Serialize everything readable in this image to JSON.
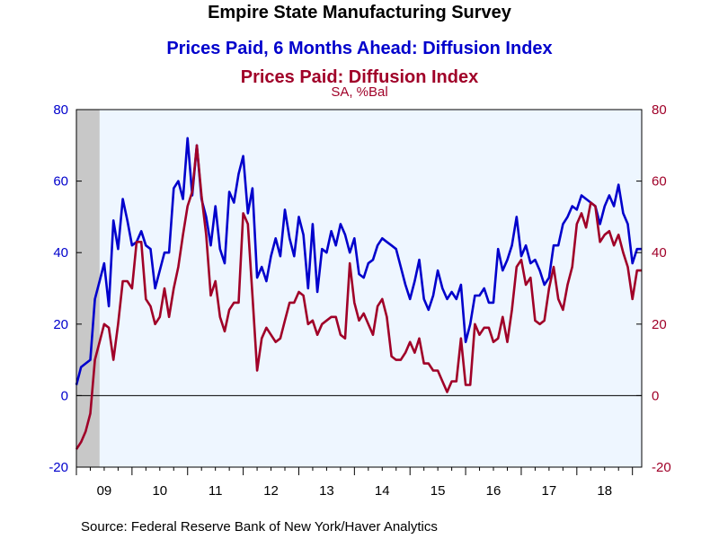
{
  "chart_data": {
    "type": "line",
    "title": "Empire State Manufacturing Survey",
    "units": "SA, %Bal",
    "source": "Source:  Federal Reserve Bank of New York/Haver Analytics",
    "x_tick_labels": [
      "09",
      "10",
      "11",
      "12",
      "13",
      "14",
      "15",
      "16",
      "17",
      "18"
    ],
    "x_range": [
      "2009-01",
      "2019-03"
    ],
    "recession_band": [
      "2009-01",
      "2009-06"
    ],
    "y_left": {
      "ylim": [
        -20,
        80
      ],
      "ticks": [
        -20,
        0,
        20,
        40,
        60,
        80
      ],
      "color": "#0000cc"
    },
    "y_right": {
      "ylim": [
        -20,
        80
      ],
      "ticks": [
        -20,
        0,
        20,
        40,
        60,
        80
      ],
      "color": "#a00028"
    },
    "zero_line": true,
    "plot_background": "#eef6ff",
    "x": [
      "2009-01",
      "2009-02",
      "2009-03",
      "2009-04",
      "2009-05",
      "2009-06",
      "2009-07",
      "2009-08",
      "2009-09",
      "2009-10",
      "2009-11",
      "2009-12",
      "2010-01",
      "2010-02",
      "2010-03",
      "2010-04",
      "2010-05",
      "2010-06",
      "2010-07",
      "2010-08",
      "2010-09",
      "2010-10",
      "2010-11",
      "2010-12",
      "2011-01",
      "2011-02",
      "2011-03",
      "2011-04",
      "2011-05",
      "2011-06",
      "2011-07",
      "2011-08",
      "2011-09",
      "2011-10",
      "2011-11",
      "2011-12",
      "2012-01",
      "2012-02",
      "2012-03",
      "2012-04",
      "2012-05",
      "2012-06",
      "2012-07",
      "2012-08",
      "2012-09",
      "2012-10",
      "2012-11",
      "2012-12",
      "2013-01",
      "2013-02",
      "2013-03",
      "2013-04",
      "2013-05",
      "2013-06",
      "2013-07",
      "2013-08",
      "2013-09",
      "2013-10",
      "2013-11",
      "2013-12",
      "2014-01",
      "2014-02",
      "2014-03",
      "2014-04",
      "2014-05",
      "2014-06",
      "2014-07",
      "2014-08",
      "2014-09",
      "2014-10",
      "2014-11",
      "2014-12",
      "2015-01",
      "2015-02",
      "2015-03",
      "2015-04",
      "2015-05",
      "2015-06",
      "2015-07",
      "2015-08",
      "2015-09",
      "2015-10",
      "2015-11",
      "2015-12",
      "2016-01",
      "2016-02",
      "2016-03",
      "2016-04",
      "2016-05",
      "2016-06",
      "2016-07",
      "2016-08",
      "2016-09",
      "2016-10",
      "2016-11",
      "2016-12",
      "2017-01",
      "2017-02",
      "2017-03",
      "2017-04",
      "2017-05",
      "2017-06",
      "2017-07",
      "2017-08",
      "2017-09",
      "2017-10",
      "2017-11",
      "2017-12",
      "2018-01",
      "2018-02",
      "2018-03",
      "2018-04",
      "2018-05",
      "2018-06",
      "2018-07",
      "2018-08",
      "2018-09",
      "2018-10",
      "2018-11",
      "2018-12",
      "2019-01",
      "2019-02",
      "2019-03"
    ],
    "series": [
      {
        "name": "Prices Paid, 6 Months Ahead: Diffusion Index",
        "color": "#0000cc",
        "axis": "left",
        "values": [
          3,
          8,
          9,
          10,
          27,
          32,
          37,
          25,
          49,
          41,
          55,
          49,
          42,
          43,
          46,
          42,
          41,
          30,
          35,
          40,
          40,
          58,
          60,
          55,
          72,
          56,
          70,
          55,
          50,
          42,
          53,
          41,
          37,
          57,
          54,
          62,
          67,
          51,
          58,
          33,
          36,
          32,
          39,
          44,
          39,
          52,
          44,
          39,
          50,
          45,
          30,
          48,
          29,
          41,
          40,
          46,
          42,
          48,
          45,
          40,
          44,
          34,
          33,
          37,
          38,
          42,
          44,
          43,
          42,
          41,
          36,
          31,
          27,
          32,
          38,
          27,
          24,
          28,
          35,
          30,
          27,
          29,
          27,
          31,
          15,
          20,
          28,
          28,
          30,
          26,
          26,
          41,
          35,
          38,
          42,
          50,
          39,
          42,
          37,
          38,
          35,
          31,
          33,
          42,
          42,
          48,
          50,
          53,
          52,
          56,
          55,
          54,
          53,
          48,
          53,
          56,
          53,
          59,
          51,
          48,
          37,
          41,
          41
        ]
      },
      {
        "name": "Prices Paid: Diffusion Index",
        "color": "#a00028",
        "axis": "right",
        "values": [
          -15,
          -13,
          -10,
          -5,
          10,
          15,
          20,
          19,
          10,
          20,
          32,
          32,
          30,
          43,
          43,
          27,
          25,
          20,
          22,
          30,
          22,
          30,
          36,
          45,
          53,
          57,
          70,
          56,
          45,
          28,
          32,
          22,
          18,
          24,
          26,
          26,
          51,
          48,
          28,
          7,
          16,
          19,
          17,
          15,
          16,
          21,
          26,
          26,
          29,
          28,
          20,
          21,
          17,
          20,
          21,
          22,
          22,
          17,
          16,
          37,
          26,
          21,
          23,
          20,
          17,
          25,
          27,
          22,
          11,
          10,
          10,
          12,
          15,
          12,
          16,
          9,
          9,
          7,
          7,
          4,
          1,
          4,
          4,
          16,
          3,
          3,
          20,
          17,
          19,
          19,
          15,
          16,
          22,
          15,
          24,
          36,
          38,
          31,
          33,
          21,
          20,
          21,
          30,
          36,
          27,
          24,
          31,
          36,
          48,
          51,
          47,
          54,
          53,
          43,
          45,
          46,
          42,
          45,
          40,
          36,
          27,
          35,
          35
        ]
      }
    ]
  }
}
